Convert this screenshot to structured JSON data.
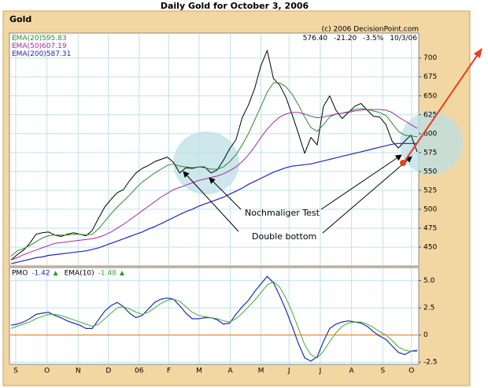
{
  "title": "Daily Gold for October 3, 2006",
  "symbol": "Gold",
  "copyright": "(c) 2006 DecisionPoint.com",
  "quote": {
    "close": "576.40",
    "change": "-21.20",
    "percent": "-3.5%",
    "date": "10/3/06"
  },
  "annotations": {
    "retest": "Nochmaliger Test",
    "double_bottom": "Double bottom"
  },
  "chart_data": [
    {
      "type": "line",
      "x": [
        0,
        1,
        2,
        3,
        4,
        5,
        6,
        7,
        8,
        9,
        10,
        11,
        12,
        13,
        14,
        15,
        16,
        17,
        18,
        19,
        20,
        21,
        22,
        23,
        24,
        25,
        26,
        27,
        28,
        29,
        30,
        31,
        32,
        33,
        34,
        35,
        36,
        37,
        38,
        39,
        40,
        41,
        42,
        43,
        44,
        45,
        46,
        47,
        48,
        49,
        50,
        51,
        52,
        53,
        54,
        55,
        56,
        57,
        58,
        59,
        60,
        61,
        62,
        63,
        64,
        65
      ],
      "xlim": [
        0,
        65
      ],
      "ylim": [
        425,
        733
      ],
      "yticks": [
        450,
        475,
        500,
        525,
        550,
        575,
        600,
        625,
        650,
        675,
        700
      ],
      "grid": true,
      "series": [
        {
          "name": "Gold",
          "color": "#000000",
          "width": 1,
          "values": [
            433,
            440,
            446,
            455,
            467,
            469,
            470,
            466,
            464,
            467,
            469,
            467,
            465,
            472,
            488,
            503,
            513,
            522,
            526,
            538,
            548,
            554,
            558,
            563,
            566,
            569,
            562,
            548,
            555,
            554,
            556,
            556,
            548,
            552,
            565,
            580,
            592,
            621,
            638,
            660,
            690,
            710,
            673,
            664,
            648,
            625,
            600,
            574,
            595,
            585,
            636,
            650,
            631,
            620,
            628,
            636,
            640,
            631,
            623,
            622,
            612,
            590,
            581,
            590,
            598,
            576
          ]
        },
        {
          "name": "EMA(20)",
          "last_value": 595.83,
          "color": "#2e8b2e",
          "width": 1,
          "values": [
            438,
            445,
            448,
            452,
            457,
            462,
            465,
            466,
            466,
            466,
            467,
            467,
            466,
            467,
            474,
            484,
            494,
            503,
            511,
            519,
            528,
            536,
            542,
            548,
            553,
            558,
            560,
            557,
            556,
            555,
            556,
            555,
            553,
            553,
            556,
            563,
            572,
            585,
            600,
            618,
            636,
            655,
            667,
            667,
            662,
            652,
            638,
            622,
            608,
            603,
            612,
            622,
            626,
            627,
            629,
            632,
            633,
            632,
            630,
            628,
            624,
            614,
            603,
            598,
            597,
            596
          ]
        },
        {
          "name": "EMA(50)",
          "last_value": 607.19,
          "color": "#a02ca0",
          "width": 1,
          "values": [
            433,
            436,
            440,
            443,
            446,
            449,
            452,
            455,
            456,
            457,
            458,
            459,
            460,
            461,
            463,
            466,
            470,
            475,
            480,
            486,
            492,
            498,
            504,
            510,
            516,
            521,
            526,
            529,
            532,
            535,
            538,
            540,
            542,
            544,
            547,
            551,
            556,
            563,
            572,
            583,
            595,
            606,
            615,
            622,
            626,
            628,
            628,
            626,
            623,
            621,
            622,
            624,
            626,
            627,
            628,
            630,
            631,
            632,
            632,
            632,
            631,
            628,
            622,
            617,
            612,
            607
          ]
        },
        {
          "name": "EMA(200)",
          "last_value": 587.31,
          "color": "#2626b8",
          "width": 1.2,
          "values": [
            428,
            430,
            432,
            434,
            436,
            437,
            439,
            440,
            441,
            442,
            443,
            444,
            445,
            447,
            449,
            452,
            455,
            458,
            461,
            464,
            467,
            470,
            474,
            477,
            481,
            485,
            489,
            493,
            497,
            500,
            504,
            507,
            510,
            513,
            516,
            520,
            524,
            528,
            533,
            537,
            541,
            545,
            549,
            552,
            555,
            557,
            558,
            559,
            560,
            562,
            564,
            566,
            568,
            570,
            572,
            574,
            576,
            578,
            580,
            582,
            584,
            586,
            587,
            587,
            587,
            587
          ]
        }
      ]
    },
    {
      "type": "line",
      "x": [
        0,
        1,
        2,
        3,
        4,
        5,
        6,
        7,
        8,
        9,
        10,
        11,
        12,
        13,
        14,
        15,
        16,
        17,
        18,
        19,
        20,
        21,
        22,
        23,
        24,
        25,
        26,
        27,
        28,
        29,
        30,
        31,
        32,
        33,
        34,
        35,
        36,
        37,
        38,
        39,
        40,
        41,
        42,
        43,
        44,
        45,
        46,
        47,
        48,
        49,
        50,
        51,
        52,
        53,
        54,
        55,
        56,
        57,
        58,
        59,
        60,
        61,
        62,
        63,
        64,
        65
      ],
      "xlim": [
        0,
        65
      ],
      "xticks": [
        {
          "value": 0.75,
          "label": "S"
        },
        {
          "value": 5.75,
          "label": "O"
        },
        {
          "value": 10.75,
          "label": "N"
        },
        {
          "value": 15.6,
          "label": "D"
        },
        {
          "value": 20.5,
          "label": "06"
        },
        {
          "value": 25.25,
          "label": "F"
        },
        {
          "value": 30.1,
          "label": "M"
        },
        {
          "value": 35.1,
          "label": "A"
        },
        {
          "value": 40,
          "label": "M"
        },
        {
          "value": 44.5,
          "label": "J"
        },
        {
          "value": 49.5,
          "label": "J"
        },
        {
          "value": 54.5,
          "label": "A"
        },
        {
          "value": 59.5,
          "label": "S"
        },
        {
          "value": 64.1,
          "label": "O"
        }
      ],
      "ylim": [
        -2.7,
        6.2
      ],
      "yticks": [
        -2.5,
        0,
        2.5,
        {
          "value": 5,
          "label": "5.0"
        }
      ],
      "grid": true,
      "reference_line": {
        "value": 0,
        "color": "#f08020"
      },
      "series": [
        {
          "name": "PMO",
          "last_value": -1.42,
          "color": "#2828b0",
          "width": 1.2,
          "values": [
            0.9,
            1.0,
            1.2,
            1.5,
            1.9,
            2.0,
            2.1,
            1.8,
            1.6,
            1.3,
            1.1,
            0.9,
            0.6,
            0.6,
            1.4,
            2.2,
            2.7,
            3.0,
            2.6,
            2.0,
            1.6,
            1.8,
            2.4,
            3.0,
            3.3,
            3.4,
            3.3,
            2.7,
            2.0,
            1.5,
            1.5,
            1.6,
            1.6,
            1.4,
            1.0,
            1.1,
            1.9,
            2.6,
            3.2,
            4.0,
            4.7,
            5.4,
            4.8,
            3.6,
            2.3,
            0.8,
            -0.8,
            -2.1,
            -2.4,
            -2.0,
            -0.6,
            0.6,
            1.0,
            1.2,
            1.3,
            1.2,
            1.1,
            0.8,
            0.3,
            -0.1,
            -0.4,
            -1.0,
            -1.6,
            -1.8,
            -1.5,
            -1.4
          ]
        },
        {
          "name": "EMA(10)",
          "last_value": -1.48,
          "color": "#3cae3c",
          "width": 1,
          "values": [
            0.6,
            0.8,
            1.0,
            1.2,
            1.5,
            1.7,
            1.9,
            1.9,
            1.8,
            1.6,
            1.4,
            1.2,
            1.0,
            0.8,
            1.0,
            1.5,
            2.0,
            2.5,
            2.6,
            2.4,
            2.1,
            1.9,
            2.1,
            2.5,
            2.9,
            3.2,
            3.3,
            3.1,
            2.6,
            2.1,
            1.8,
            1.7,
            1.6,
            1.5,
            1.3,
            1.2,
            1.5,
            2.0,
            2.6,
            3.2,
            3.9,
            4.6,
            4.9,
            4.4,
            3.4,
            2.1,
            0.6,
            -0.9,
            -1.8,
            -2.1,
            -1.5,
            -0.6,
            0.2,
            0.8,
            1.1,
            1.2,
            1.2,
            1.0,
            0.7,
            0.3,
            0.0,
            -0.5,
            -1.1,
            -1.4,
            -1.5,
            -1.5
          ]
        }
      ]
    }
  ]
}
